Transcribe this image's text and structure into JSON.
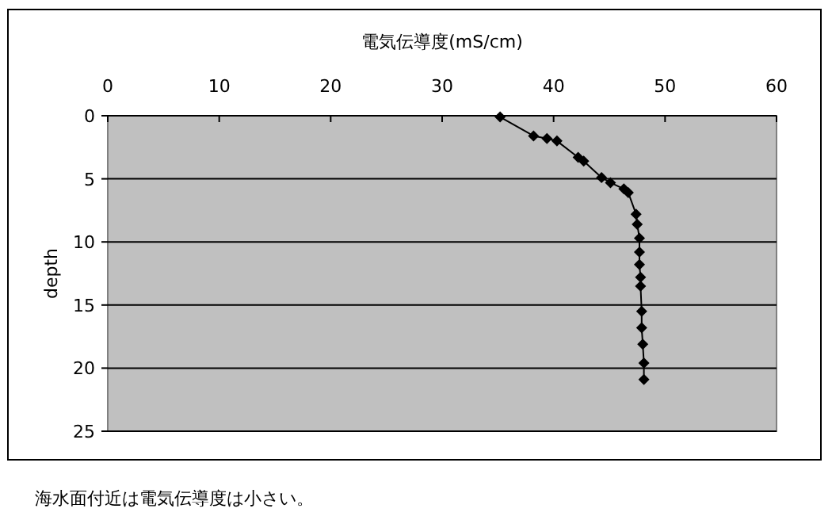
{
  "chart_data": {
    "type": "line",
    "xlabel": "電気伝導度(mS/cm)",
    "ylabel": "depth",
    "annotations": [
      "海水面付近は電気伝導度は小さい。"
    ],
    "x": [
      35.2,
      38.2,
      39.4,
      40.3,
      42.2,
      42.7,
      44.3,
      45.1,
      46.3,
      46.7,
      47.4,
      47.5,
      47.7,
      47.7,
      47.7,
      47.8,
      47.8,
      47.9,
      47.9,
      48.0,
      48.1,
      48.1
    ],
    "values": [
      0.1,
      1.6,
      1.8,
      2.0,
      3.3,
      3.6,
      4.9,
      5.3,
      5.8,
      6.1,
      7.8,
      8.6,
      9.7,
      10.8,
      11.8,
      12.8,
      13.5,
      15.5,
      16.8,
      18.1,
      19.6,
      20.9
    ],
    "color": "#000000",
    "marker": "diamond",
    "grid": "y",
    "xlim": [
      0,
      60
    ],
    "xticks": [
      0,
      10,
      20,
      30,
      40,
      50,
      60
    ],
    "ylim": [
      25,
      0
    ],
    "yticks": [
      0,
      5,
      10,
      15,
      20,
      25
    ]
  }
}
